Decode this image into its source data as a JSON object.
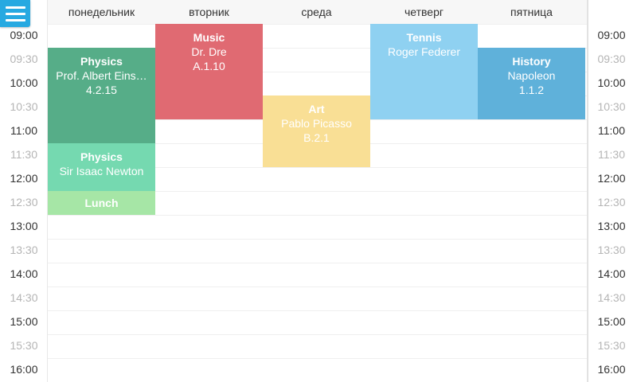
{
  "days": [
    "понедельник",
    "вторник",
    "среда",
    "четверг",
    "пятница"
  ],
  "times": [
    "09:00",
    "09:30",
    "10:00",
    "10:30",
    "11:00",
    "11:30",
    "12:00",
    "12:30",
    "13:00",
    "13:30",
    "14:00",
    "14:30",
    "15:00",
    "15:30",
    "16:00"
  ],
  "events": [
    {
      "title": "Physics",
      "line1": "Prof. Albert Eins…",
      "line2": "4.2.15",
      "color": "#56ad88"
    },
    {
      "title": "Physics",
      "line1": "Sir Isaac Newton",
      "line2": "",
      "color": "#75d9b0"
    },
    {
      "title": "Lunch",
      "line1": "",
      "line2": "",
      "color": "#a6e6a6"
    },
    {
      "title": "Music",
      "line1": "Dr. Dre",
      "line2": "A.1.10",
      "color": "#e06a72"
    },
    {
      "title": "Art",
      "line1": "Pablo Picasso",
      "line2": "B.2.1",
      "color": "#f9df95"
    },
    {
      "title": "Tennis",
      "line1": "Roger Federer",
      "line2": "",
      "color": "#8fd1f1"
    },
    {
      "title": "History",
      "line1": "Napoleon",
      "line2": "1.1.2",
      "color": "#5fb1da"
    }
  ]
}
